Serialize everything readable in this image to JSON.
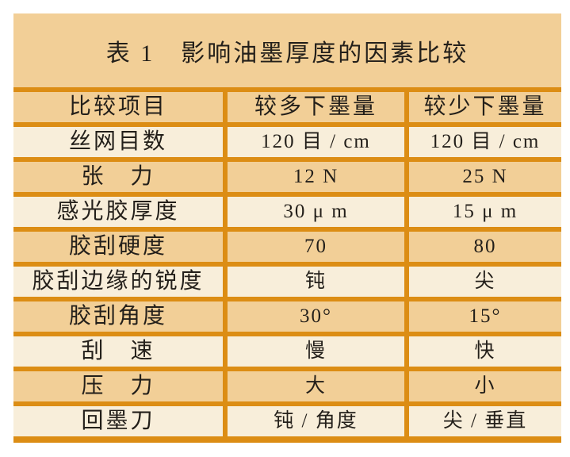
{
  "colors": {
    "tan": "#F2CF97",
    "cream": "#F8EEDA",
    "border": "#DC8D14",
    "text": "#231f1a"
  },
  "chart_data": {
    "type": "table",
    "title": "表 1　影响油墨厚度的因素比较",
    "columns": [
      "比较项目",
      "较多下墨量",
      "较少下墨量"
    ],
    "rows": [
      [
        "丝网目数",
        "120 目 / cm",
        "120 目 / cm"
      ],
      [
        "张　力",
        "12 N",
        "25 N"
      ],
      [
        "感光胶厚度",
        "30 μ m",
        "15 μ m"
      ],
      [
        "胶刮硬度",
        "70",
        "80"
      ],
      [
        "胶刮边缘的锐度",
        "钝",
        "尖"
      ],
      [
        "胶刮角度",
        "30°",
        "15°"
      ],
      [
        "刮　速",
        "慢",
        "快"
      ],
      [
        "压　力",
        "大",
        "小"
      ],
      [
        "回墨刀",
        "钝 / 角度",
        "尖 / 垂直"
      ]
    ]
  }
}
